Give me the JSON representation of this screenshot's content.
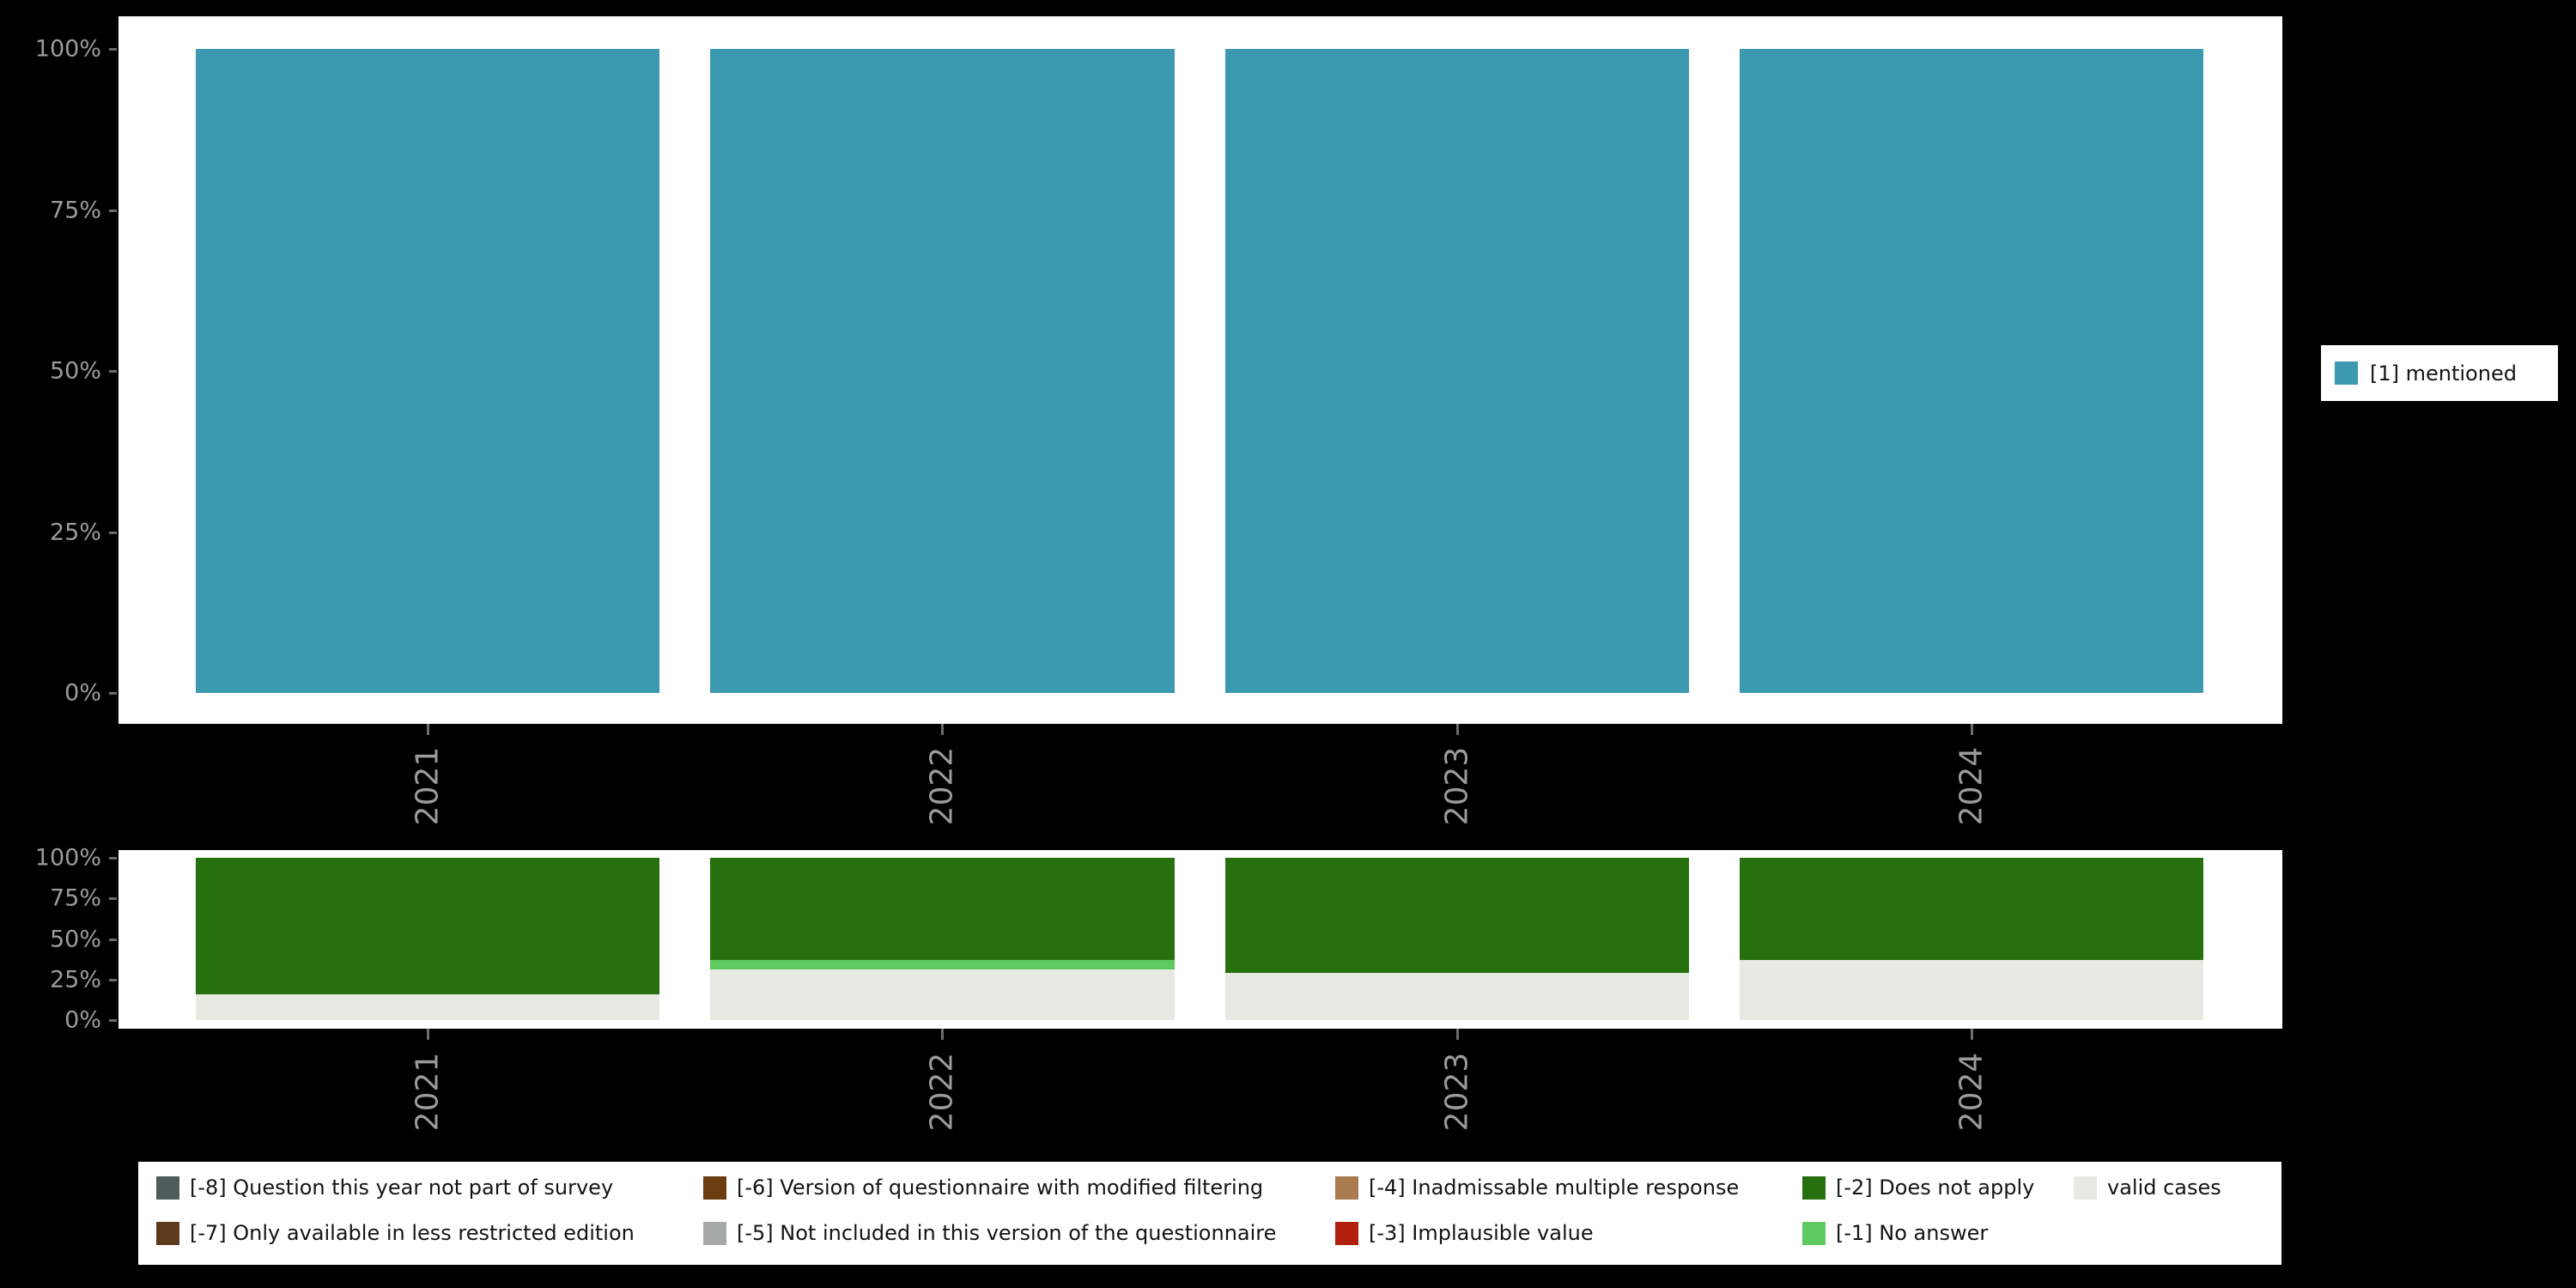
{
  "colors": {
    "page_background": "#000000",
    "panel_background": "#ffffff",
    "axis_text": "#9b9b9b",
    "mentioned": "#3b99b0",
    "valid": "#e7eae2",
    "no_answer": "#5ec95f",
    "does_not_apply": "#26710e",
    "not_part_of_survey": "#4e5c5c",
    "less_restricted": "#5f3b1d",
    "modified_filtering": "#6b3d10",
    "not_in_version": "#a5aaa7",
    "inadmissable_multiple": "#a87c50",
    "implausible": "#b11e0e"
  },
  "chart_data": [
    {
      "type": "bar",
      "subtype": "stacked-percent",
      "categories": [
        "2021",
        "2022",
        "2023",
        "2024"
      ],
      "yticks": [
        "0%",
        "25%",
        "50%",
        "75%",
        "100%"
      ],
      "ylim": [
        0,
        100
      ],
      "grid": false,
      "legend_position": "right",
      "series": [
        {
          "name": "[1] mentioned",
          "color_key": "mentioned",
          "values": [
            100,
            100,
            100,
            100
          ]
        }
      ],
      "legend": [
        {
          "label": "[1] mentioned",
          "color_key": "mentioned"
        }
      ]
    },
    {
      "type": "bar",
      "subtype": "stacked-percent",
      "categories": [
        "2021",
        "2022",
        "2023",
        "2024"
      ],
      "yticks": [
        "0%",
        "25%",
        "50%",
        "75%",
        "100%"
      ],
      "ylim": [
        0,
        100
      ],
      "grid": false,
      "legend_position": "bottom",
      "series": [
        {
          "name": "valid cases",
          "color_key": "valid",
          "values": [
            16,
            31,
            29,
            37
          ]
        },
        {
          "name": "[-1] No answer",
          "color_key": "no_answer",
          "values": [
            0,
            6,
            0,
            0
          ]
        },
        {
          "name": "[-2] Does not apply",
          "color_key": "does_not_apply",
          "values": [
            84,
            63,
            71,
            63
          ]
        }
      ],
      "legend_rows": [
        [
          {
            "label": "[-8] Question this year not part of survey",
            "color_key": "not_part_of_survey"
          },
          {
            "label": "[-6] Version of questionnaire with modified filtering",
            "color_key": "modified_filtering"
          },
          {
            "label": "[-4] Inadmissable multiple response",
            "color_key": "inadmissable_multiple"
          },
          {
            "label": "[-2] Does not apply",
            "color_key": "does_not_apply"
          },
          {
            "label": "valid cases",
            "color_key": "valid"
          }
        ],
        [
          {
            "label": "[-7] Only available in less restricted edition",
            "color_key": "less_restricted"
          },
          {
            "label": "[-5] Not included in this version of the questionnaire",
            "color_key": "not_in_version"
          },
          {
            "label": "[-3] Implausible value",
            "color_key": "implausible"
          },
          {
            "label": "[-1] No answer",
            "color_key": "no_answer"
          }
        ]
      ]
    }
  ]
}
